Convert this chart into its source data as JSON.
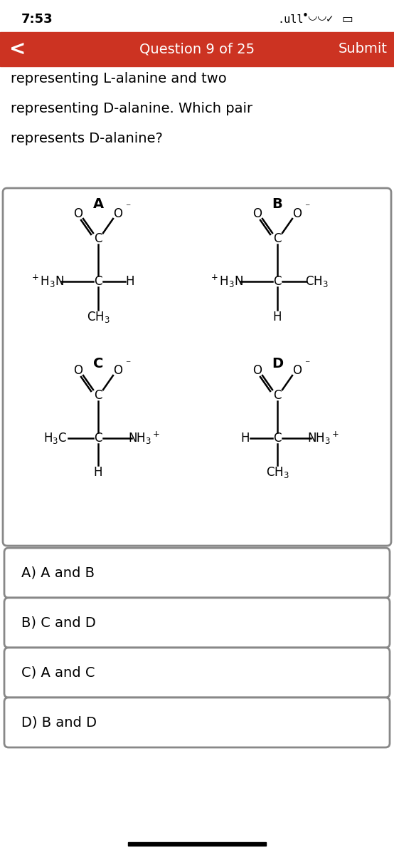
{
  "status_bar_time": "7:53",
  "nav_text": "Question 9 of 25",
  "nav_submit": "Submit",
  "nav_bg": "#cc3322",
  "nav_text_color": "#ffffff",
  "question_lines": [
    "representing L-alanine and two",
    "representing D-alanine. Which pair",
    "represents D-alanine?"
  ],
  "answer_choices": [
    "A) A and B",
    "B) C and D",
    "C) A and C",
    "D) B and D"
  ],
  "bg_color": "#ffffff",
  "box_border": "#888888",
  "text_color": "#000000"
}
